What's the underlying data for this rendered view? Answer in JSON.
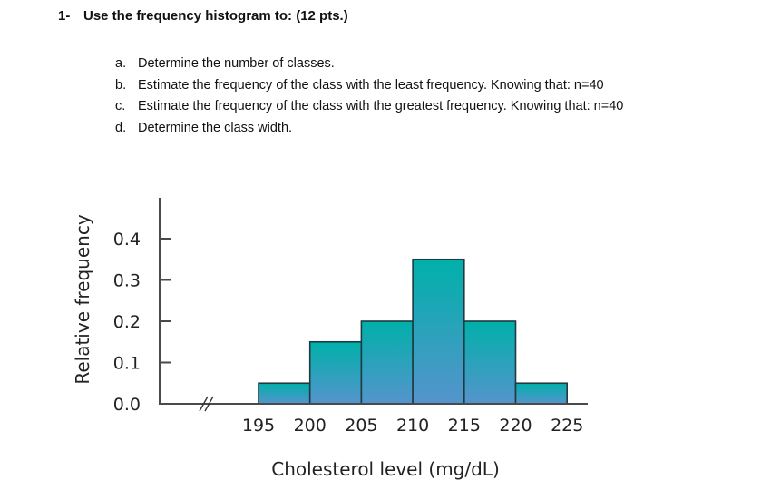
{
  "question": {
    "number": "1-",
    "text": "Use the frequency histogram to: (12 pts.)",
    "items": [
      {
        "letter": "a.",
        "text": "Determine the number of classes."
      },
      {
        "letter": "b.",
        "text": "Estimate the frequency of the class with the least frequency. Knowing that: n=40"
      },
      {
        "letter": "c.",
        "text": "Estimate the frequency of the class with the greatest frequency. Knowing that: n=40"
      },
      {
        "letter": "d.",
        "text": "Determine the class width."
      }
    ]
  },
  "chart_data": {
    "type": "bar",
    "title": "",
    "xlabel": "Cholesterol level (mg/dL)",
    "ylabel": "Relative frequency",
    "bin_edges": [
      195,
      200,
      205,
      210,
      215,
      220,
      225
    ],
    "categories": [
      "195-200",
      "200-205",
      "205-210",
      "210-215",
      "215-220",
      "220-225"
    ],
    "values": [
      0.05,
      0.15,
      0.2,
      0.35,
      0.2,
      0.05
    ],
    "x_tick_labels": [
      "195",
      "200",
      "205",
      "210",
      "215",
      "220",
      "225"
    ],
    "y_ticks": [
      0.0,
      0.1,
      0.2,
      0.3,
      0.4
    ],
    "y_tick_labels": [
      "0.0",
      "0.1",
      "0.2",
      "0.3",
      "0.4"
    ],
    "ylim": [
      0,
      0.5
    ],
    "xlim": [
      195,
      225
    ],
    "x_axis_break": true,
    "grid": false,
    "legend": "none",
    "colors": {
      "bar_top": "#00B0AA",
      "bar_bottom": "#5594CC",
      "bar_edge": "#1F3A40",
      "axis": "#4a4a4a"
    }
  }
}
